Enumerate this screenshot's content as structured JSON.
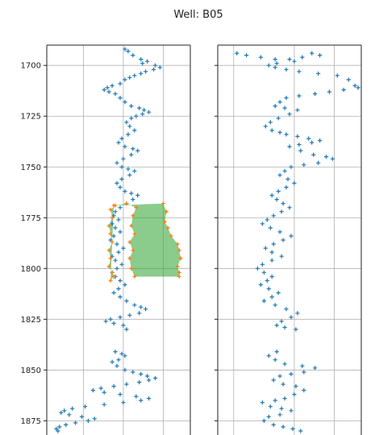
{
  "chart_data": {
    "type": "scatter",
    "title": "Well: B05",
    "y_reversed": true,
    "ylim": [
      1690,
      1882
    ],
    "yticks": [
      1700,
      1725,
      1750,
      1775,
      1800,
      1825,
      1850,
      1875
    ],
    "grid": true,
    "colors": {
      "marker": "#1f77b4",
      "fill": "#2ca02c",
      "fill_edge": "#ff7f0e"
    },
    "panels": [
      {
        "name": "left",
        "xlim": [
          0,
          9
        ],
        "xgrid": [
          2.3,
          4.8,
          7.3
        ],
        "points": [
          [
            4.9,
            1692
          ],
          [
            5.1,
            1693
          ],
          [
            5.4,
            1695
          ],
          [
            5.9,
            1697
          ],
          [
            6.3,
            1698
          ],
          [
            6.0,
            1699
          ],
          [
            6.8,
            1700
          ],
          [
            7.1,
            1701
          ],
          [
            6.7,
            1702
          ],
          [
            6.2,
            1703
          ],
          [
            5.9,
            1704
          ],
          [
            5.5,
            1705
          ],
          [
            5.2,
            1706
          ],
          [
            4.9,
            1707
          ],
          [
            4.6,
            1709
          ],
          [
            4.1,
            1710
          ],
          [
            3.8,
            1711
          ],
          [
            3.6,
            1712
          ],
          [
            3.9,
            1713
          ],
          [
            4.3,
            1714
          ],
          [
            4.6,
            1716
          ],
          [
            4.9,
            1718
          ],
          [
            5.3,
            1720
          ],
          [
            5.8,
            1721
          ],
          [
            6.1,
            1722
          ],
          [
            6.4,
            1723
          ],
          [
            6.0,
            1724
          ],
          [
            5.6,
            1725
          ],
          [
            5.3,
            1726
          ],
          [
            5.0,
            1728
          ],
          [
            5.2,
            1730
          ],
          [
            5.5,
            1732
          ],
          [
            5.1,
            1734
          ],
          [
            4.7,
            1736
          ],
          [
            4.5,
            1738
          ],
          [
            4.9,
            1740
          ],
          [
            5.4,
            1741
          ],
          [
            5.7,
            1742
          ],
          [
            5.3,
            1744
          ],
          [
            4.8,
            1746
          ],
          [
            4.4,
            1748
          ],
          [
            4.7,
            1750
          ],
          [
            5.1,
            1751
          ],
          [
            5.5,
            1752
          ],
          [
            5.2,
            1754
          ],
          [
            4.7,
            1756
          ],
          [
            4.4,
            1758
          ],
          [
            4.6,
            1760
          ],
          [
            4.9,
            1762
          ],
          [
            5.3,
            1763
          ],
          [
            5.7,
            1764
          ],
          [
            5.4,
            1766
          ],
          [
            5.0,
            1768
          ],
          [
            4.6,
            1770
          ],
          [
            4.3,
            1772
          ],
          [
            4.2,
            1774
          ],
          [
            4.5,
            1776
          ],
          [
            4.1,
            1778
          ],
          [
            4.3,
            1780
          ],
          [
            4.6,
            1782
          ],
          [
            4.2,
            1784
          ],
          [
            4.0,
            1786
          ],
          [
            4.4,
            1788
          ],
          [
            4.8,
            1790
          ],
          [
            4.5,
            1792
          ],
          [
            4.1,
            1794
          ],
          [
            4.3,
            1796
          ],
          [
            4.7,
            1798
          ],
          [
            4.4,
            1800
          ],
          [
            4.1,
            1802
          ],
          [
            4.3,
            1804
          ],
          [
            4.6,
            1806
          ],
          [
            4.9,
            1808
          ],
          [
            4.5,
            1810
          ],
          [
            4.2,
            1812
          ],
          [
            4.6,
            1814
          ],
          [
            5.0,
            1816
          ],
          [
            5.5,
            1818
          ],
          [
            5.9,
            1819
          ],
          [
            6.2,
            1820
          ],
          [
            5.8,
            1822
          ],
          [
            5.2,
            1823
          ],
          [
            4.6,
            1824
          ],
          [
            4.0,
            1825
          ],
          [
            3.7,
            1826
          ],
          [
            4.2,
            1827
          ],
          [
            4.8,
            1828
          ],
          [
            5.0,
            1830
          ],
          [
            4.3,
            1841
          ],
          [
            4.7,
            1842
          ],
          [
            4.9,
            1843
          ],
          [
            4.5,
            1845
          ],
          [
            4.1,
            1846
          ],
          [
            4.4,
            1848
          ],
          [
            4.9,
            1850
          ],
          [
            5.4,
            1851
          ],
          [
            5.9,
            1852
          ],
          [
            6.3,
            1853
          ],
          [
            6.8,
            1854
          ],
          [
            6.4,
            1855
          ],
          [
            5.8,
            1856
          ],
          [
            5.0,
            1857
          ],
          [
            4.2,
            1858
          ],
          [
            3.4,
            1859
          ],
          [
            2.9,
            1860
          ],
          [
            3.6,
            1861
          ],
          [
            4.6,
            1862
          ],
          [
            5.6,
            1863
          ],
          [
            6.4,
            1864
          ],
          [
            5.9,
            1865
          ],
          [
            4.8,
            1866
          ],
          [
            3.6,
            1867
          ],
          [
            2.4,
            1868
          ],
          [
            1.6,
            1869
          ],
          [
            1.1,
            1870
          ],
          [
            0.9,
            1871
          ],
          [
            1.4,
            1872
          ],
          [
            2.2,
            1873
          ],
          [
            3.0,
            1874
          ],
          [
            2.6,
            1875
          ],
          [
            1.8,
            1876
          ],
          [
            1.2,
            1877
          ],
          [
            0.8,
            1878
          ],
          [
            0.6,
            1879
          ],
          [
            0.7,
            1880
          ]
        ],
        "fill_polygon": [
          [
            4.2,
            1769
          ],
          [
            7.3,
            1768
          ],
          [
            7.5,
            1772
          ],
          [
            7.4,
            1777
          ],
          [
            7.6,
            1780
          ],
          [
            7.8,
            1784
          ],
          [
            8.2,
            1788
          ],
          [
            8.3,
            1791
          ],
          [
            8.4,
            1795
          ],
          [
            8.2,
            1799
          ],
          [
            8.3,
            1802
          ],
          [
            8.3,
            1804
          ],
          [
            5.5,
            1804
          ],
          [
            5.3,
            1800
          ],
          [
            5.2,
            1795
          ],
          [
            5.4,
            1791
          ],
          [
            5.2,
            1787
          ],
          [
            5.5,
            1783
          ],
          [
            5.3,
            1779
          ],
          [
            5.4,
            1774
          ],
          [
            5.6,
            1770
          ],
          [
            5.0,
            1768
          ],
          [
            4.3,
            1769
          ],
          [
            4.0,
            1771
          ],
          [
            4.1,
            1775
          ],
          [
            3.9,
            1779
          ],
          [
            4.0,
            1783
          ],
          [
            4.1,
            1787
          ],
          [
            3.9,
            1791
          ],
          [
            4.0,
            1795
          ],
          [
            3.9,
            1799
          ],
          [
            4.1,
            1802
          ],
          [
            4.2,
            1804
          ],
          [
            4.0,
            1806
          ]
        ]
      },
      {
        "name": "right",
        "xlim": [
          0,
          9
        ],
        "xgrid": [
          1.0,
          4.8,
          7.3
        ],
        "points": [
          [
            1.2,
            1694
          ],
          [
            1.8,
            1695
          ],
          [
            2.7,
            1696
          ],
          [
            3.6,
            1697
          ],
          [
            4.5,
            1697
          ],
          [
            5.3,
            1696
          ],
          [
            5.9,
            1694
          ],
          [
            6.4,
            1695
          ],
          [
            4.8,
            1698
          ],
          [
            3.7,
            1699
          ],
          [
            3.2,
            1700
          ],
          [
            3.6,
            1701
          ],
          [
            4.3,
            1702
          ],
          [
            5.1,
            1703
          ],
          [
            6.3,
            1704
          ],
          [
            7.5,
            1705
          ],
          [
            8.2,
            1707
          ],
          [
            8.6,
            1710
          ],
          [
            8.8,
            1711
          ],
          [
            7.9,
            1712
          ],
          [
            7.0,
            1713
          ],
          [
            6.1,
            1714
          ],
          [
            5.1,
            1715
          ],
          [
            4.3,
            1716
          ],
          [
            3.9,
            1718
          ],
          [
            3.6,
            1720
          ],
          [
            4.2,
            1721
          ],
          [
            5.0,
            1722
          ],
          [
            4.5,
            1724
          ],
          [
            3.8,
            1726
          ],
          [
            3.3,
            1728
          ],
          [
            3.0,
            1730
          ],
          [
            3.4,
            1732
          ],
          [
            3.9,
            1733
          ],
          [
            4.3,
            1734
          ],
          [
            5.0,
            1735
          ],
          [
            5.7,
            1736
          ],
          [
            6.4,
            1737
          ],
          [
            5.9,
            1738
          ],
          [
            5.1,
            1739
          ],
          [
            4.5,
            1740
          ],
          [
            5.2,
            1742
          ],
          [
            6.0,
            1744
          ],
          [
            6.8,
            1745
          ],
          [
            7.2,
            1746
          ],
          [
            6.3,
            1748
          ],
          [
            5.4,
            1749
          ],
          [
            4.6,
            1750
          ],
          [
            4.2,
            1752
          ],
          [
            3.9,
            1754
          ],
          [
            4.4,
            1756
          ],
          [
            4.8,
            1758
          ],
          [
            4.3,
            1760
          ],
          [
            3.8,
            1762
          ],
          [
            3.4,
            1764
          ],
          [
            3.7,
            1766
          ],
          [
            4.1,
            1768
          ],
          [
            4.5,
            1770
          ],
          [
            4.0,
            1772
          ],
          [
            3.5,
            1774
          ],
          [
            3.1,
            1776
          ],
          [
            2.8,
            1778
          ],
          [
            3.3,
            1780
          ],
          [
            3.9,
            1782
          ],
          [
            4.6,
            1784
          ],
          [
            4.1,
            1786
          ],
          [
            3.5,
            1788
          ],
          [
            3.0,
            1790
          ],
          [
            3.4,
            1792
          ],
          [
            4.0,
            1794
          ],
          [
            3.4,
            1796
          ],
          [
            2.8,
            1798
          ],
          [
            2.5,
            1800
          ],
          [
            2.9,
            1802
          ],
          [
            3.4,
            1804
          ],
          [
            3.1,
            1806
          ],
          [
            2.7,
            1808
          ],
          [
            3.2,
            1810
          ],
          [
            3.8,
            1812
          ],
          [
            3.4,
            1814
          ],
          [
            2.9,
            1816
          ],
          [
            3.6,
            1818
          ],
          [
            4.3,
            1820
          ],
          [
            5.0,
            1822
          ],
          [
            4.6,
            1824
          ],
          [
            4.0,
            1826
          ],
          [
            3.7,
            1828
          ],
          [
            4.2,
            1829
          ],
          [
            4.9,
            1830
          ],
          [
            3.7,
            1841
          ],
          [
            3.2,
            1843
          ],
          [
            3.6,
            1845
          ],
          [
            4.2,
            1847
          ],
          [
            5.3,
            1848
          ],
          [
            6.1,
            1849
          ],
          [
            5.4,
            1851
          ],
          [
            4.6,
            1852
          ],
          [
            3.9,
            1853
          ],
          [
            3.5,
            1855
          ],
          [
            4.1,
            1857
          ],
          [
            4.9,
            1858
          ],
          [
            5.4,
            1860
          ],
          [
            4.8,
            1862
          ],
          [
            4.2,
            1864
          ],
          [
            3.6,
            1865
          ],
          [
            2.8,
            1866
          ],
          [
            3.3,
            1868
          ],
          [
            4.0,
            1869
          ],
          [
            4.6,
            1870
          ],
          [
            3.9,
            1872
          ],
          [
            3.2,
            1873
          ],
          [
            2.9,
            1875
          ],
          [
            3.5,
            1877
          ],
          [
            4.1,
            1878
          ],
          [
            4.7,
            1879
          ],
          [
            5.2,
            1880
          ]
        ]
      }
    ]
  }
}
